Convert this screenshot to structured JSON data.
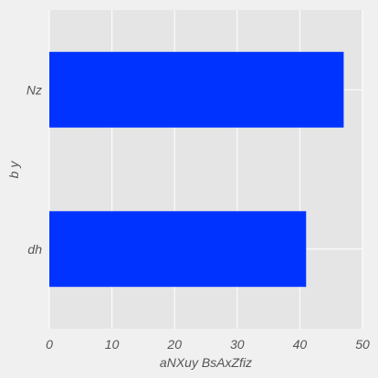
{
  "chart_data": {
    "type": "bar",
    "orientation": "horizontal",
    "categories": [
      "dh",
      "Nz"
    ],
    "values": [
      41,
      47
    ],
    "xlabel": "aNXuy BsAxZfiz",
    "ylabel": "b y",
    "xlim": [
      0,
      50
    ],
    "xticks": [
      0,
      10,
      20,
      30,
      40,
      50
    ],
    "grid": true,
    "bar_color": "#0033ff",
    "plot_background": "#e5e5e5",
    "figure_background": "#f0f0f0",
    "grid_color": "#ffffff"
  }
}
